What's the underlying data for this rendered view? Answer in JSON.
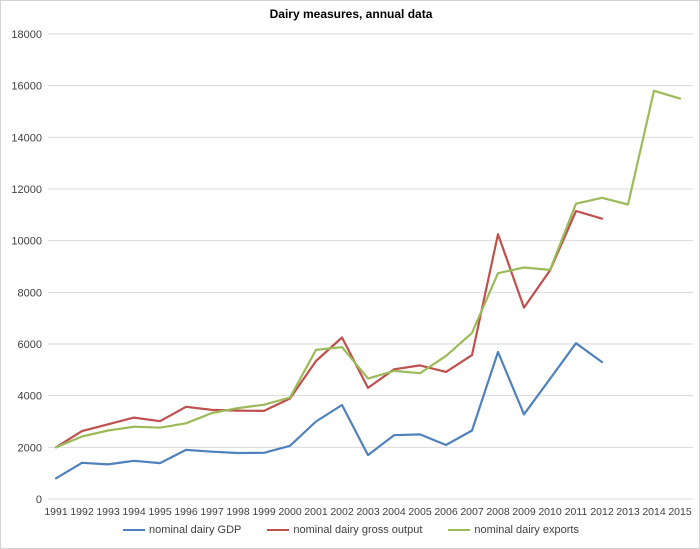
{
  "frame": {
    "background": "#ffffff",
    "border_color": "#d4d4d4"
  },
  "chart_data": {
    "type": "line",
    "title": "Dairy measures, annual data",
    "xlabel": "",
    "ylabel": "",
    "x": [
      1991,
      1992,
      1993,
      1994,
      1995,
      1996,
      1997,
      1998,
      1999,
      2000,
      2001,
      2002,
      2003,
      2004,
      2005,
      2006,
      2007,
      2008,
      2009,
      2010,
      2011,
      2012,
      2013,
      2014,
      2015
    ],
    "ylim": [
      0,
      18000
    ],
    "ytick_interval": 2000,
    "yticks": [
      0,
      2000,
      4000,
      6000,
      8000,
      10000,
      12000,
      14000,
      16000,
      18000
    ],
    "grid": true,
    "legend_position": "bottom",
    "colors": {
      "gridline": "#d9d9d9",
      "tick_text": "#404040",
      "title_text": "#000000"
    },
    "series": [
      {
        "name": "nominal dairy GDP",
        "color": "#4f81bd",
        "values": [
          800,
          1400,
          1340,
          1480,
          1390,
          1900,
          1830,
          1780,
          1790,
          2060,
          3000,
          3640,
          1700,
          2470,
          2500,
          2090,
          2650,
          5690,
          3280,
          4650,
          6030,
          5300,
          null,
          null,
          null
        ]
      },
      {
        "name": "nominal dairy gross output",
        "color": "#c0504d",
        "values": [
          2000,
          2630,
          2890,
          3150,
          3010,
          3570,
          3450,
          3420,
          3410,
          3890,
          5340,
          6250,
          4300,
          5020,
          5170,
          4920,
          5570,
          10250,
          7410,
          8850,
          11150,
          10850,
          null,
          null,
          null
        ]
      },
      {
        "name": "nominal dairy exports",
        "color": "#9bbb59",
        "values": [
          2000,
          2420,
          2650,
          2800,
          2760,
          2930,
          3330,
          3520,
          3650,
          3930,
          5770,
          5880,
          4660,
          4960,
          4870,
          5540,
          6430,
          8740,
          8960,
          8870,
          11430,
          11660,
          11400,
          15800,
          15500
        ]
      }
    ]
  }
}
